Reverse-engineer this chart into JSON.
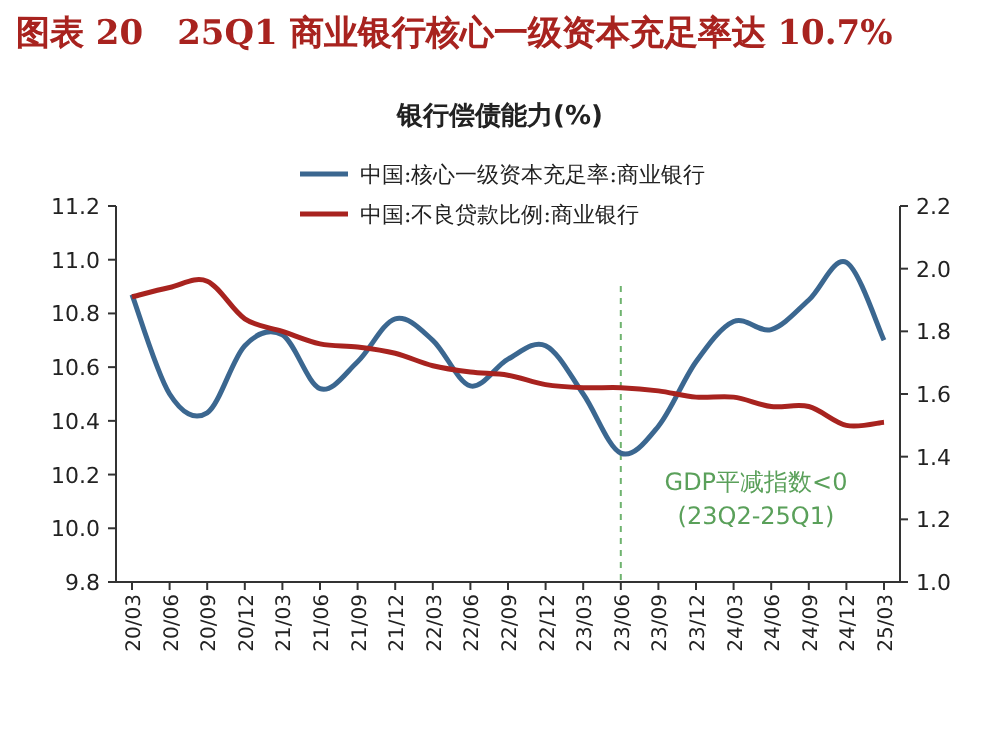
{
  "chart_data": {
    "type": "line",
    "title": "图表 20　25Q1 商业银行核心一级资本充足率达 10.7%",
    "subtitle": "银行偿债能力(%)",
    "categories": [
      "20/03",
      "20/06",
      "20/09",
      "20/12",
      "21/03",
      "21/06",
      "21/09",
      "21/12",
      "22/03",
      "22/06",
      "22/09",
      "22/12",
      "23/03",
      "23/06",
      "23/09",
      "23/12",
      "24/03",
      "24/06",
      "24/09",
      "24/12",
      "25/03"
    ],
    "series": [
      {
        "name": "中国:核心一级资本充足率:商业银行",
        "color": "#3b6790",
        "values": [
          10.87,
          10.5,
          10.43,
          10.68,
          10.72,
          10.52,
          10.62,
          10.78,
          10.7,
          10.53,
          10.63,
          10.68,
          10.5,
          10.28,
          10.38,
          10.62,
          10.77,
          10.74,
          10.85,
          10.99,
          10.7
        ]
      },
      {
        "name": "中国:不良贷款比例:商业银行",
        "color": "#a8231f",
        "axis": "y2",
        "values": [
          1.91,
          1.94,
          1.96,
          1.84,
          1.8,
          1.76,
          1.75,
          1.73,
          1.69,
          1.67,
          1.66,
          1.63,
          1.62,
          1.62,
          1.61,
          1.59,
          1.59,
          1.56,
          1.56,
          1.5,
          1.51
        ]
      }
    ],
    "ylim": [
      9.8,
      11.2
    ],
    "yticks": [
      9.8,
      {
        "value": 10,
        "label": "10.0"
      },
      10.2,
      10.4,
      10.6,
      10.8,
      {
        "value": 11,
        "label": "11.0"
      },
      11.2
    ],
    "y2lim": [
      1.0,
      2.2
    ],
    "y2ticks": [
      {
        "value": 1,
        "label": "1.0"
      },
      1.2,
      1.4,
      1.6,
      1.8,
      {
        "value": 2,
        "label": "2.0"
      },
      2.2
    ],
    "ref_lines": [
      {
        "axis": "x",
        "value": "23/06",
        "color": "#6fb36f",
        "line_style": "dashed"
      }
    ],
    "annotations": [
      "GDP平减指数<0",
      "(23Q2-25Q1)"
    ],
    "legend": "top",
    "grid": false
  }
}
